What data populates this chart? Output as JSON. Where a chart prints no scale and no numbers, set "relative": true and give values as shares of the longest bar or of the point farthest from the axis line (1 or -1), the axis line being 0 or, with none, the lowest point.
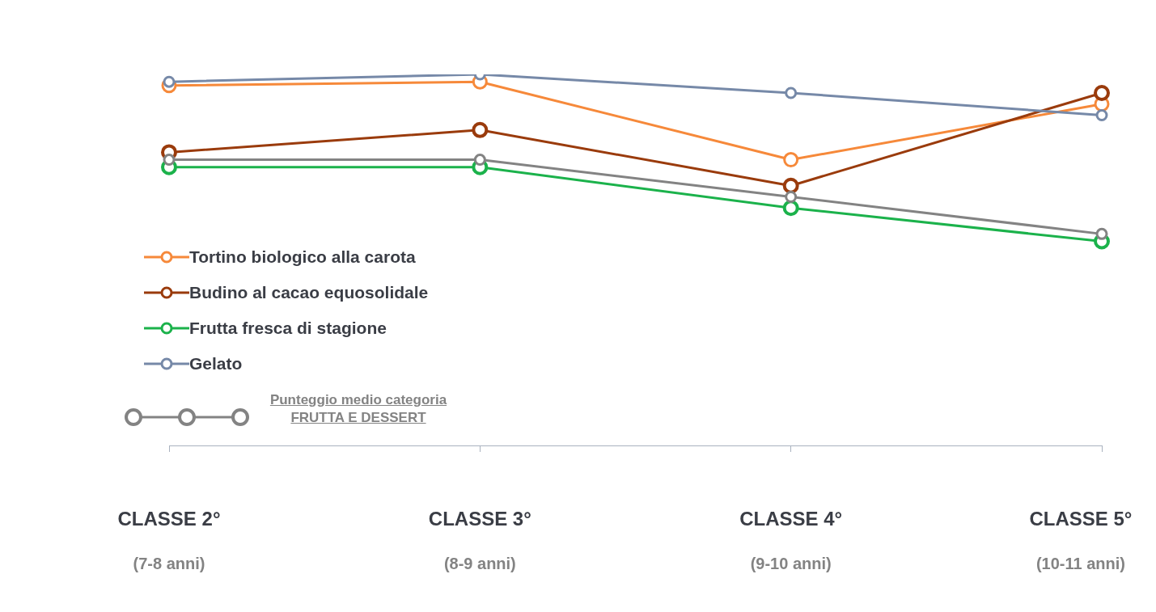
{
  "chart_data": {
    "type": "line",
    "relative": true,
    "categories": [
      "CLASSE 2°\n(7-8 anni)",
      "CLASSE 3°\n(8-9 anni)",
      "CLASSE 4°\n(9-10 anni)",
      "CLASSE 5°\n(10-11 anni)"
    ],
    "series": [
      {
        "name": "Tortino biologico alla carota",
        "color": "#f6893a",
        "values": [
          0.97,
          0.98,
          0.77,
          0.92
        ]
      },
      {
        "name": "Budino al cacao equosolidale",
        "color": "#9a3b0c",
        "values": [
          0.79,
          0.85,
          0.7,
          0.95
        ]
      },
      {
        "name": "Frutta fresca di stagione",
        "color": "#1bb24b",
        "values": [
          0.75,
          0.75,
          0.64,
          0.55
        ]
      },
      {
        "name": "Gelato",
        "color": "#7689a8",
        "values": [
          0.98,
          1,
          0.95,
          0.89
        ]
      },
      {
        "name": "Punteggio medio categoria FRUTTA E DESSERT",
        "color": "#838383",
        "values": [
          0.77,
          0.77,
          0.67,
          0.57
        ]
      }
    ],
    "marker": "circle",
    "legend": "bottom left"
  }
}
